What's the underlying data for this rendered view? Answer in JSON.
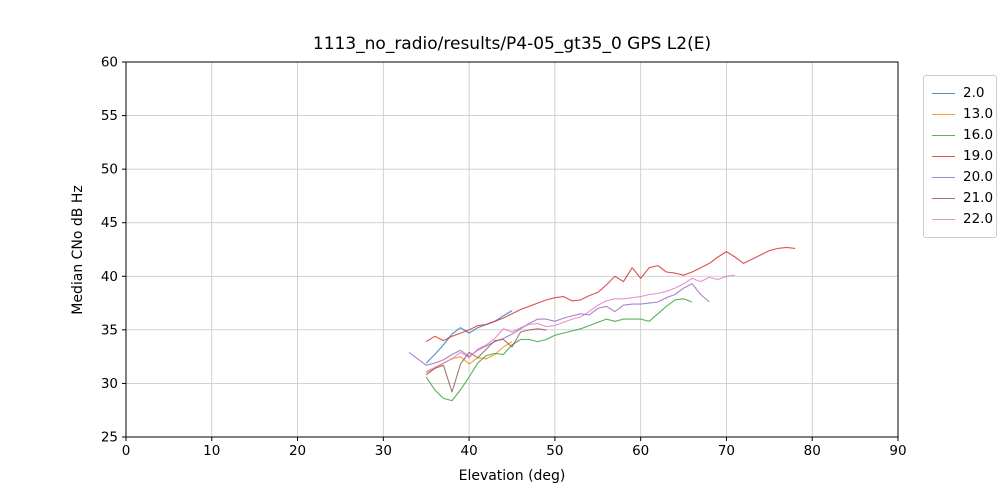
{
  "chart_data": {
    "type": "line",
    "title": "1113_no_radio/results/P4-05_gt35_0 GPS L2(E)",
    "xlabel": "Elevation (deg)",
    "ylabel": "Median CNo dB Hz",
    "xlim": [
      0,
      90
    ],
    "ylim": [
      25,
      60
    ],
    "xticks": [
      0,
      10,
      20,
      30,
      40,
      50,
      60,
      70,
      80,
      90
    ],
    "yticks": [
      25,
      30,
      35,
      40,
      45,
      50,
      55,
      60
    ],
    "grid": true,
    "grid_color": "#cccccc",
    "legend_position": "outside-top-right",
    "series": [
      {
        "name": "2.0",
        "color": "#1f77b4",
        "x": [
          35,
          36,
          37,
          38,
          39,
          40,
          41,
          42,
          43,
          44,
          45
        ],
        "y": [
          31.9,
          32.7,
          33.6,
          34.6,
          35.2,
          34.7,
          35.2,
          35.5,
          35.8,
          36.3,
          36.8
        ]
      },
      {
        "name": "13.0",
        "color": "#ff7f0e",
        "x": [
          35,
          36,
          37,
          38,
          39,
          40,
          41,
          42,
          43,
          44,
          45
        ],
        "y": [
          31.0,
          31.4,
          31.9,
          32.3,
          32.5,
          31.8,
          32.4,
          32.3,
          32.7,
          33.4,
          33.9
        ]
      },
      {
        "name": "16.0",
        "color": "#2ca02c",
        "x": [
          35,
          36,
          37,
          38,
          39,
          40,
          41,
          42,
          43,
          44,
          45,
          46,
          47,
          48,
          49,
          50,
          51,
          52,
          53,
          54,
          55,
          56,
          57,
          58,
          59,
          60,
          61,
          62,
          63,
          64,
          65,
          66
        ],
        "y": [
          30.6,
          29.4,
          28.6,
          28.4,
          29.4,
          30.6,
          31.9,
          32.6,
          32.8,
          32.7,
          33.6,
          34.1,
          34.1,
          33.9,
          34.1,
          34.5,
          34.7,
          34.9,
          35.1,
          35.4,
          35.7,
          36.0,
          35.8,
          36.0,
          36.0,
          36.0,
          35.8,
          36.5,
          37.2,
          37.8,
          37.9,
          37.6
        ]
      },
      {
        "name": "19.0",
        "color": "#d62728",
        "x": [
          35,
          36,
          37,
          38,
          39,
          40,
          41,
          42,
          43,
          44,
          45,
          46,
          47,
          48,
          49,
          50,
          51,
          52,
          53,
          54,
          55,
          56,
          57,
          58,
          59,
          60,
          61,
          62,
          63,
          64,
          65,
          66,
          67,
          68,
          69,
          70,
          71,
          72,
          73,
          74,
          75,
          76,
          77,
          78
        ],
        "y": [
          33.9,
          34.4,
          34.0,
          34.4,
          34.7,
          35.0,
          35.4,
          35.5,
          35.8,
          36.1,
          36.5,
          36.9,
          37.2,
          37.5,
          37.8,
          38.0,
          38.1,
          37.7,
          37.8,
          38.2,
          38.5,
          39.2,
          40.0,
          39.5,
          40.8,
          39.8,
          40.8,
          41.0,
          40.4,
          40.3,
          40.1,
          40.4,
          40.8,
          41.2,
          41.8,
          42.3,
          41.8,
          41.2,
          41.6,
          42.0,
          42.4,
          42.6,
          42.7,
          42.6
        ]
      },
      {
        "name": "20.0",
        "color": "#9467bd",
        "x": [
          33,
          34,
          35,
          36,
          37,
          38,
          39,
          40,
          41,
          42,
          43,
          44,
          45,
          46,
          47,
          48,
          49,
          50,
          51,
          52,
          53,
          54,
          55,
          56,
          57,
          58,
          59,
          60,
          61,
          62,
          63,
          64,
          65,
          66,
          67,
          68
        ],
        "y": [
          32.9,
          32.3,
          31.7,
          31.9,
          32.2,
          32.7,
          33.1,
          32.5,
          33.1,
          33.5,
          33.9,
          34.2,
          34.6,
          35.1,
          35.6,
          36.0,
          36.0,
          35.8,
          36.1,
          36.3,
          36.5,
          36.4,
          37.0,
          37.2,
          36.7,
          37.3,
          37.4,
          37.4,
          37.5,
          37.6,
          38.0,
          38.3,
          38.9,
          39.3,
          38.3,
          37.6
        ]
      },
      {
        "name": "21.0",
        "color": "#8c564b",
        "x": [
          35,
          36,
          37,
          38,
          39,
          40,
          41,
          42,
          43,
          44,
          45,
          46,
          47,
          48,
          49
        ],
        "y": [
          30.8,
          31.4,
          31.7,
          29.2,
          31.8,
          32.9,
          32.4,
          33.2,
          34.0,
          34.1,
          33.4,
          34.8,
          35.0,
          35.1,
          35.0
        ]
      },
      {
        "name": "22.0",
        "color": "#e377c2",
        "x": [
          35,
          36,
          37,
          38,
          39,
          40,
          41,
          42,
          43,
          44,
          45,
          46,
          47,
          48,
          49,
          50,
          51,
          52,
          53,
          54,
          55,
          56,
          57,
          58,
          59,
          60,
          61,
          62,
          63,
          64,
          65,
          66,
          67,
          68,
          69,
          70,
          71
        ],
        "y": [
          31.1,
          31.5,
          31.9,
          32.3,
          32.9,
          32.4,
          33.2,
          33.6,
          34.2,
          35.1,
          34.8,
          35.2,
          35.5,
          35.6,
          35.3,
          35.4,
          35.7,
          36.0,
          36.2,
          36.7,
          37.3,
          37.7,
          37.9,
          37.9,
          38.0,
          38.1,
          38.3,
          38.4,
          38.6,
          38.9,
          39.3,
          39.8,
          39.5,
          39.9,
          39.7,
          40.0,
          40.1
        ]
      }
    ]
  }
}
